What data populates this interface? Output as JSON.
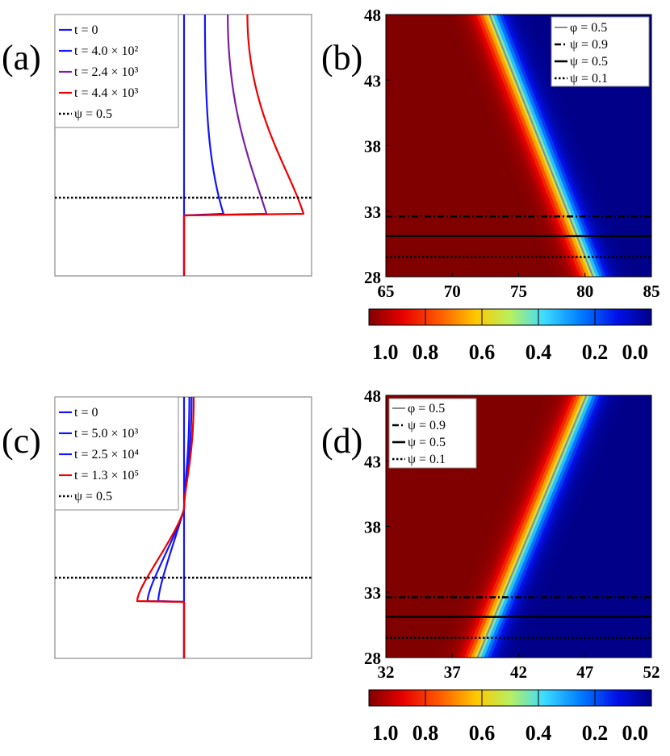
{
  "chart_data": [
    {
      "panel": "(a)",
      "type": "line",
      "title": "",
      "xlabel": "",
      "ylabel": "",
      "axes_ticks": "none",
      "series": [
        {
          "name": "t = 0",
          "color": "#1414ff",
          "style": "solid",
          "profile": "step"
        },
        {
          "name": "t = 4.0 × 10²",
          "color": "#1414ff",
          "style": "solid",
          "profile": "bulge-right",
          "amplitude": 0.33
        },
        {
          "name": "t = 2.4 × 10³",
          "color": "#7a1fa0",
          "style": "solid",
          "profile": "bulge-right",
          "amplitude": 0.69
        },
        {
          "name": "t = 4.4 × 10³",
          "color": "#ee0000",
          "style": "solid",
          "profile": "bulge-right",
          "amplitude": 1.0
        },
        {
          "name": "ψ = 0.5",
          "color": "#000000",
          "style": "dotted",
          "profile": "horizontal-level"
        }
      ]
    },
    {
      "panel": "(b)",
      "type": "heatmap",
      "title": "",
      "xlabel": "",
      "ylabel": "",
      "xlim": [
        65,
        85
      ],
      "ylim": [
        28,
        48
      ],
      "xticks": [
        "65",
        "70",
        "75",
        "80",
        "85"
      ],
      "yticks": [
        "28",
        "33",
        "38",
        "43",
        "48"
      ],
      "front": {
        "x_at_ymin": 80.6,
        "x_at_ymax": 72.8,
        "width": 1.0
      },
      "colorbar": {
        "ticks": [
          "1.0",
          "0.8",
          "0.6",
          "0.4",
          "0.2",
          "0.0"
        ],
        "range": [
          1.0,
          0.0
        ]
      },
      "series": [
        {
          "name": "φ = 0.5",
          "style": "solid-gray",
          "x": [
            80.6,
            72.8
          ],
          "y": [
            28,
            48
          ]
        },
        {
          "name": "ψ = 0.9",
          "style": "dash-dot",
          "y": 32.6
        },
        {
          "name": "ψ = 0.5",
          "style": "solid-black",
          "y": 31.1
        },
        {
          "name": "ψ = 0.1",
          "style": "dotted",
          "y": 29.5
        }
      ]
    },
    {
      "panel": "(c)",
      "type": "line",
      "title": "",
      "xlabel": "",
      "ylabel": "",
      "axes_ticks": "none",
      "series": [
        {
          "name": "t = 0",
          "color": "#1414ff",
          "style": "solid",
          "profile": "step"
        },
        {
          "name": "t = 5.0 × 10³",
          "color": "#1414ff",
          "style": "solid",
          "profile": "bulge-left",
          "amplitude": 0.55
        },
        {
          "name": "t = 2.5 × 10⁴",
          "color": "#1414ff",
          "style": "solid",
          "profile": "bulge-left",
          "amplitude": 0.78
        },
        {
          "name": "t = 1.3 × 10⁵",
          "color": "#ee0000",
          "style": "solid",
          "profile": "bulge-left",
          "amplitude": 1.0
        },
        {
          "name": "ψ = 0.5",
          "color": "#000000",
          "style": "dotted",
          "profile": "horizontal-level"
        }
      ]
    },
    {
      "panel": "(d)",
      "type": "heatmap",
      "title": "",
      "xlabel": "",
      "ylabel": "",
      "xlim": [
        32,
        52
      ],
      "ylim": [
        28,
        48
      ],
      "xticks": [
        "32",
        "37",
        "42",
        "47",
        "52"
      ],
      "yticks": [
        "28",
        "33",
        "38",
        "43",
        "48"
      ],
      "front": {
        "x_at_ymin": 38.9,
        "x_at_ymax": 47.1,
        "width": 1.0
      },
      "colorbar": {
        "ticks": [
          "1.0",
          "0.8",
          "0.6",
          "0.4",
          "0.2",
          "0.0"
        ],
        "range": [
          1.0,
          0.0
        ]
      },
      "series": [
        {
          "name": "φ = 0.5",
          "style": "solid-gray",
          "x": [
            38.9,
            47.1
          ],
          "y": [
            28,
            48
          ]
        },
        {
          "name": "ψ = 0.9",
          "style": "dash-dot",
          "y": 32.6
        },
        {
          "name": "ψ = 0.5",
          "style": "solid-black",
          "y": 31.1
        },
        {
          "name": "ψ = 0.1",
          "style": "dotted",
          "y": 29.5
        }
      ]
    }
  ]
}
